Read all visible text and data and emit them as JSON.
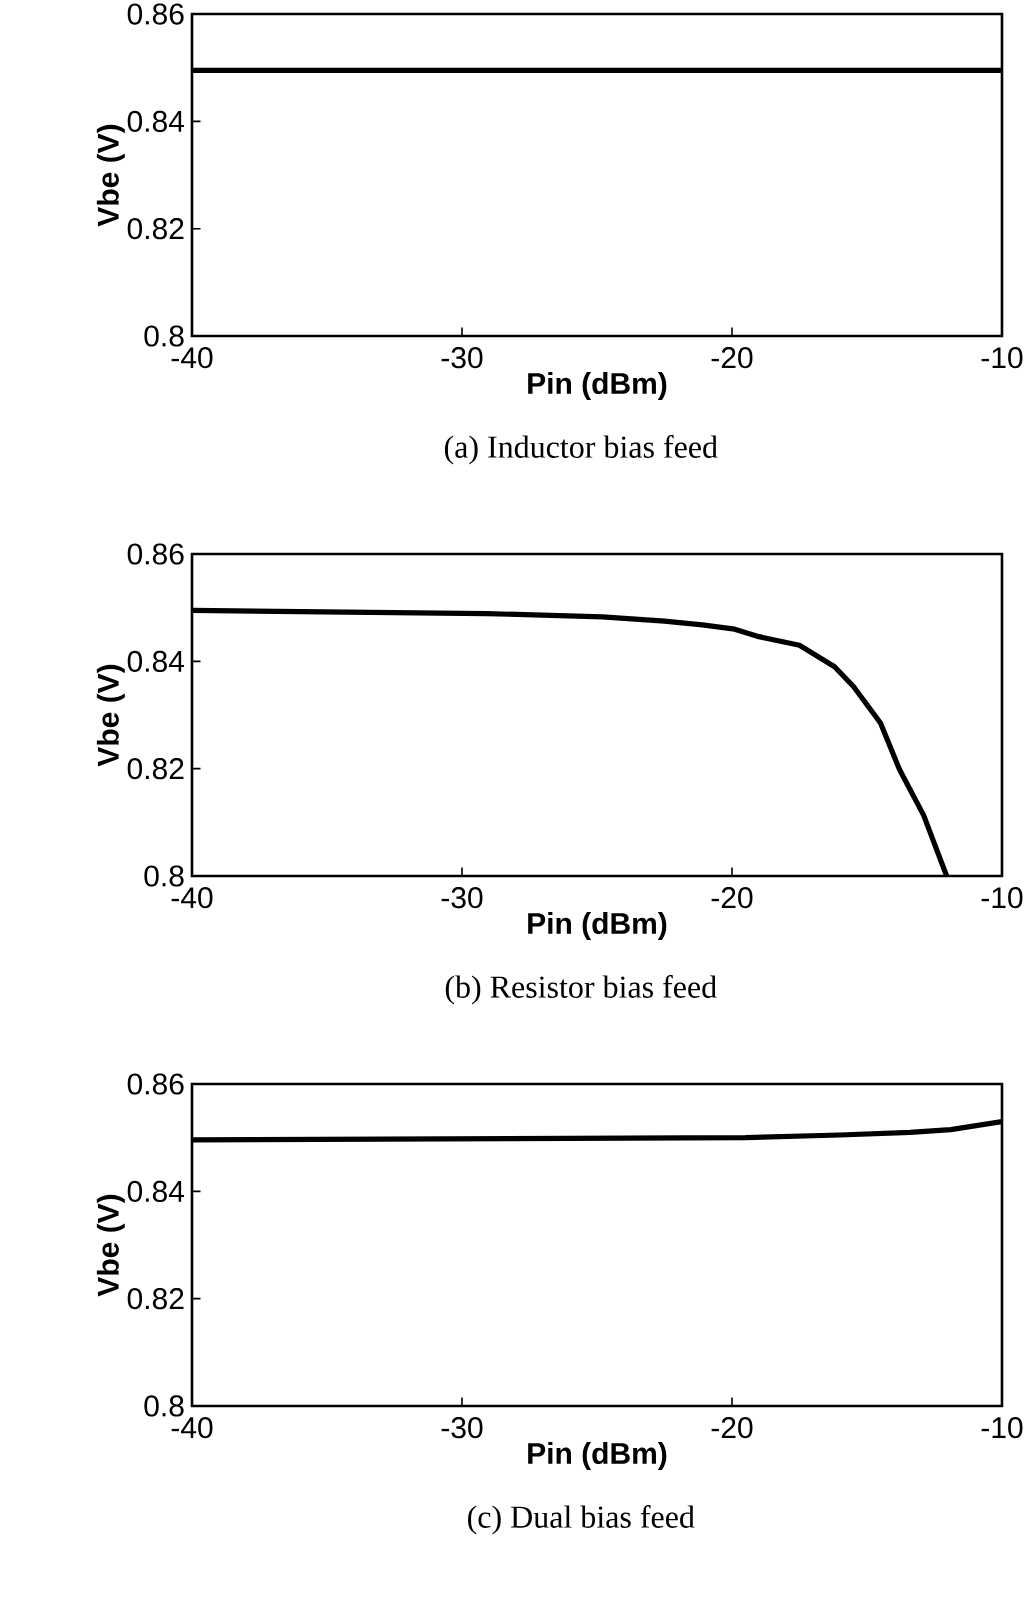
{
  "chart_data": [
    {
      "type": "line",
      "title": "(a) Inductor bias feed",
      "xlabel": "Pin (dBm)",
      "ylabel": "Vbe (V)",
      "x": [
        -40,
        -10
      ],
      "values": [
        0.8495,
        0.8495
      ],
      "color": "#000000",
      "xlim": [
        -40,
        -10
      ],
      "ylim": [
        0.8,
        0.86
      ],
      "xticks": [
        -40,
        -30,
        -20,
        -10
      ],
      "yticks": [
        0.8,
        0.82,
        0.84,
        0.86
      ]
    },
    {
      "type": "line",
      "title": "(b) Resistor bias feed",
      "xlabel": "Pin (dBm)",
      "ylabel": "Vbe (V)",
      "x": [
        -40,
        -29.1,
        -24.8,
        -22.5,
        -21.1,
        -19.9,
        -19.0,
        -17.5,
        -16.2,
        -15.5,
        -14.5,
        -13.8,
        -12.9,
        -12.05
      ],
      "values": [
        0.8495,
        0.8489,
        0.8483,
        0.8475,
        0.8468,
        0.846,
        0.8446,
        0.843,
        0.839,
        0.8353,
        0.8285,
        0.8199,
        0.8113,
        0.8
      ],
      "color": "#000000",
      "xlim": [
        -40,
        -10
      ],
      "ylim": [
        0.8,
        0.86
      ],
      "xticks": [
        -40,
        -30,
        -20,
        -10
      ],
      "yticks": [
        0.8,
        0.82,
        0.84,
        0.86
      ]
    },
    {
      "type": "line",
      "title": "(c) Dual bias feed",
      "xlabel": "Pin (dBm)",
      "ylabel": "Vbe (V)",
      "x": [
        -40,
        -19.5,
        -16,
        -13.4,
        -11.9,
        -10
      ],
      "values": [
        0.8496,
        0.85,
        0.8505,
        0.851,
        0.8515,
        0.853
      ],
      "color": "#000000",
      "xlim": [
        -40,
        -10
      ],
      "ylim": [
        0.8,
        0.86
      ],
      "xticks": [
        -40,
        -30,
        -20,
        -10
      ],
      "yticks": [
        0.8,
        0.82,
        0.84,
        0.86
      ]
    }
  ]
}
